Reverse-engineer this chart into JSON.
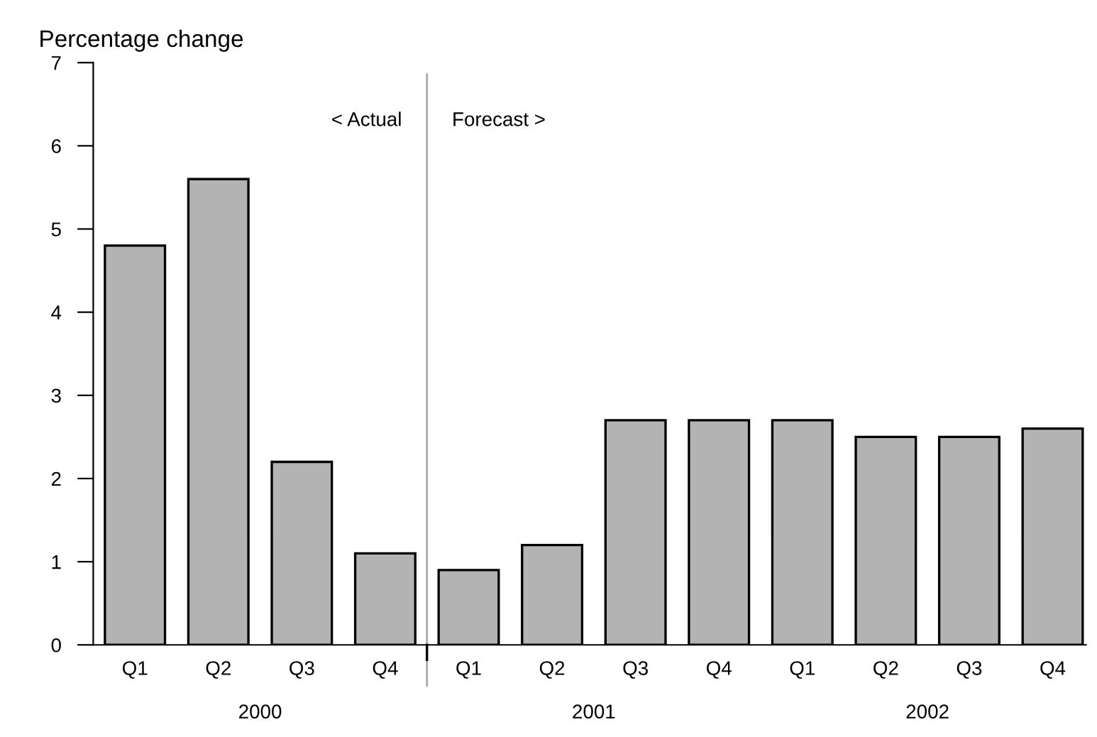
{
  "chart_data": {
    "type": "bar",
    "ylabel": "Percentage change",
    "categories": [
      "Q1",
      "Q2",
      "Q3",
      "Q4",
      "Q1",
      "Q2",
      "Q3",
      "Q4",
      "Q1",
      "Q2",
      "Q3",
      "Q4"
    ],
    "values": [
      4.8,
      5.6,
      2.2,
      1.1,
      0.9,
      1.2,
      2.7,
      2.7,
      2.7,
      2.5,
      2.5,
      2.6
    ],
    "color": "#b3b3b3",
    "ylim": [
      0,
      7
    ],
    "yticks": [
      0,
      1,
      2,
      3,
      4,
      5,
      6,
      7
    ],
    "grid": false,
    "annotations": [
      "< Actual",
      "Forecast >",
      "2000",
      "2001",
      "2002"
    ]
  }
}
